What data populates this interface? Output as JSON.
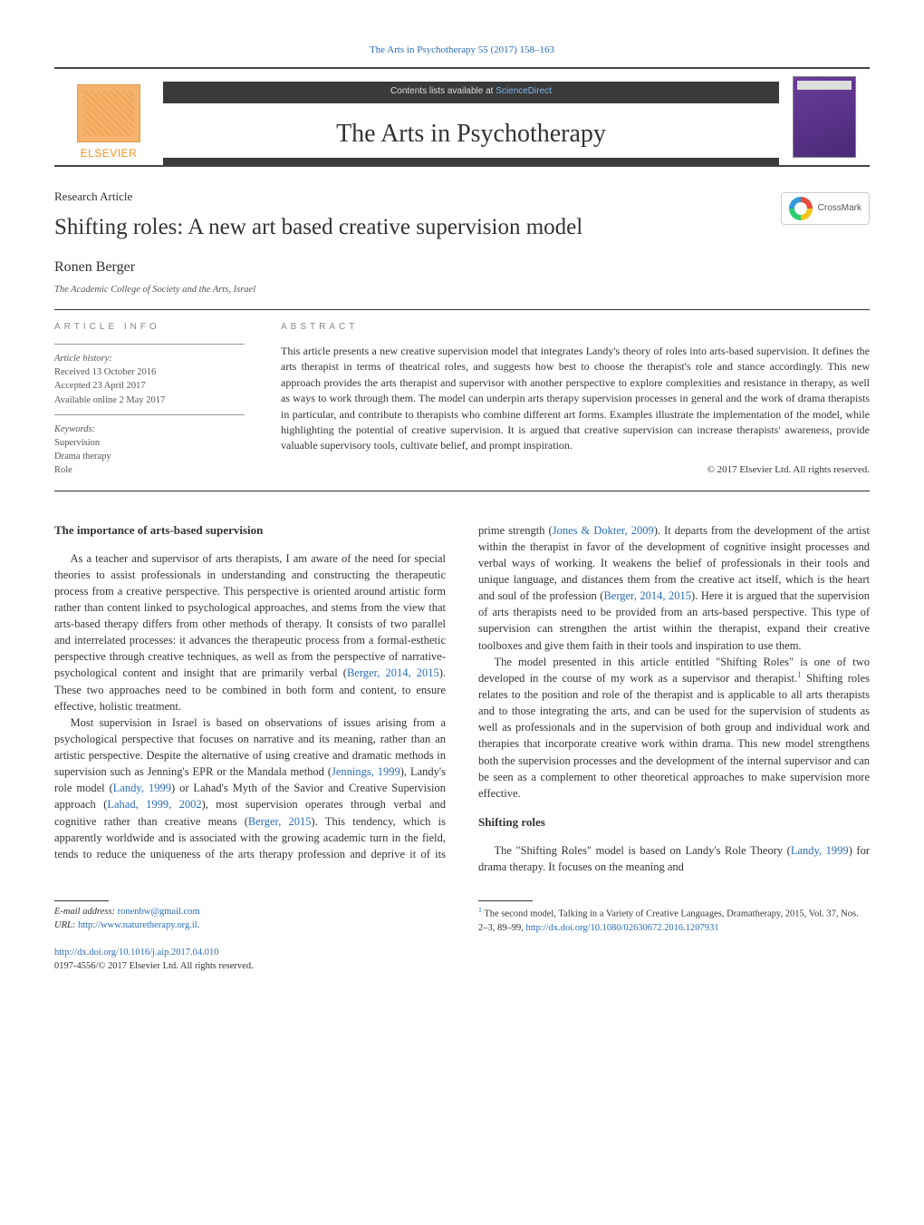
{
  "header": {
    "citation_link_text": "The Arts in Psychotherapy 55 (2017) 158–163",
    "contents_text": "Contents lists available at ",
    "contents_link": "ScienceDirect",
    "journal_name": "The Arts in Psychotherapy",
    "publisher_word": "ELSEVIER"
  },
  "article": {
    "type": "Research Article",
    "title": "Shifting roles: A new art based creative supervision model",
    "author": "Ronen Berger",
    "affiliation": "The Academic College of Society and the Arts, Israel",
    "crossmark_label": "CrossMark"
  },
  "info": {
    "heading": "article info",
    "history_label": "Article history:",
    "received": "Received 13 October 2016",
    "accepted": "Accepted 23 April 2017",
    "online": "Available online 2 May 2017",
    "keywords_label": "Keywords:",
    "keywords": [
      "Supervision",
      "Drama therapy",
      "Role"
    ]
  },
  "abstract": {
    "heading": "abstract",
    "text": "This article presents a new creative supervision model that integrates Landy's theory of roles into arts-based supervision. It defines the arts therapist in terms of theatrical roles, and suggests how best to choose the therapist's role and stance accordingly. This new approach provides the arts therapist and supervisor with another perspective to explore complexities and resistance in therapy, as well as ways to work through them. The model can underpin arts therapy supervision processes in general and the work of drama therapists in particular, and contribute to therapists who combine different art forms. Examples illustrate the implementation of the model, while highlighting the potential of creative supervision. It is argued that creative supervision can increase therapists' awareness, provide valuable supervisory tools, cultivate belief, and prompt inspiration.",
    "copyright": "© 2017 Elsevier Ltd. All rights reserved."
  },
  "body": {
    "s1": {
      "heading": "The importance of arts-based supervision",
      "p1a": "As a teacher and supervisor of arts therapists, I am aware of the need for special theories to assist professionals in understanding and constructing the therapeutic process from a creative perspective. This perspective is oriented around artistic form rather than content linked to psychological approaches, and stems from the view that arts-based therapy differs from other methods of therapy. It consists of two parallel and interrelated processes: it advances the therapeutic process from a formal-esthetic perspective through creative techniques, as well as from the perspective of narrative-psychological content and insight that are primarily verbal (",
      "p1link": "Berger, 2014, 2015",
      "p1b": "). These two approaches need to be combined in both form and content, to ensure effective, holistic treatment.",
      "p2a": "Most supervision in Israel is based on observations of issues arising from a psychological perspective that focuses on narrative and its meaning, rather than an artistic perspective. Despite the alternative of using creative and dramatic methods in supervision such as Jenning's EPR or the Mandala method (",
      "p2l1": "Jennings, 1999",
      "p2b": "), Landy's role model (",
      "p2l2": "Landy, 1999",
      "p2c": ") or Lahad's Myth of the Savior and Creative Supervision approach (",
      "p2l3": "Lahad, 1999, 2002",
      "p2d": "), most supervision operates through verbal and cognitive rather than creative means (",
      "p2l4": "Berger, 2015",
      "p2e": "). This tendency, which is apparently worldwide and is associated with the growing academic turn in the field, tends to reduce the uniqueness of the arts therapy profession and deprive it of its prime strength (",
      "p2l5": "Jones & Dokter, 2009",
      "p2f": "). It departs from the development of the artist within the therapist in favor of the development of cognitive insight processes and verbal ways of working. It weakens the belief of professionals in their tools and unique language, and distances them from the creative act itself, which is the heart and soul of the profession (",
      "p2l6": "Berger, 2014, 2015",
      "p2g": "). Here it is argued that the supervision of arts therapists need to be provided from an arts-based perspective. This type of supervision can strengthen the artist within the therapist, expand their creative toolboxes and give them faith in their tools and inspiration to use them.",
      "p3a": "The model presented in this article entitled \"Shifting Roles\" is one of two developed in the course of my work as a supervisor and therapist.",
      "p3sup": "1",
      "p3b": " Shifting roles relates to the position and role of the therapist and is applicable to all arts therapists and to those integrating the arts, and can be used for the supervision of students as well as professionals and in the supervision of both group and individual work and therapies that incorporate creative work within drama. This new model strengthens both the supervision processes and the development of the internal supervisor and can be seen as a complement to other theoretical approaches to make supervision more effective."
    },
    "s2": {
      "heading": "Shifting roles",
      "p1a": "The \"Shifting Roles\" model is based on Landy's Role Theory (",
      "p1link": "Landy, 1999",
      "p1b": ") for drama therapy. It focuses on the meaning and"
    }
  },
  "footer": {
    "email_label": "E-mail address: ",
    "email": "ronenbw@gmail.com",
    "url_label": "URL: ",
    "url": "http://www.naturetherapy.org.il",
    "url_suffix": ".",
    "doi": "http://dx.doi.org/10.1016/j.aip.2017.04.010",
    "issn": "0197-4556/© 2017 Elsevier Ltd. All rights reserved.",
    "note_marker": "1",
    "note_text": " The second model, Talking in a Variety of Creative Languages, Dramatherapy, 2015, Vol. 37, Nos. 2–3, 89–99, ",
    "note_link": "http://dx.doi.org/10.1080/02630672.2016.1207931"
  },
  "style": {
    "link_color": "#2a6cb6",
    "text_color": "#333333",
    "rule_color": "#333333",
    "muted": "#888888",
    "journal_fontsize": 28,
    "title_fontsize": 25,
    "body_fontsize": 12.5
  }
}
